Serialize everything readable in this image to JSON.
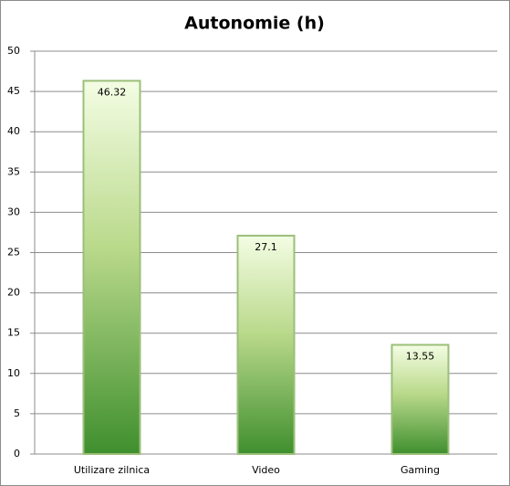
{
  "chart_data": {
    "type": "bar",
    "title": "Autonomie (h)",
    "categories": [
      "Utilizare zilnica",
      "Video",
      "Gaming"
    ],
    "values": [
      46.32,
      27.1,
      13.55
    ],
    "color": "#3f8f2e",
    "ylim": [
      0,
      50
    ],
    "yticks": [
      0,
      5,
      10,
      15,
      20,
      25,
      30,
      35,
      40,
      45,
      50
    ],
    "grid": true
  }
}
